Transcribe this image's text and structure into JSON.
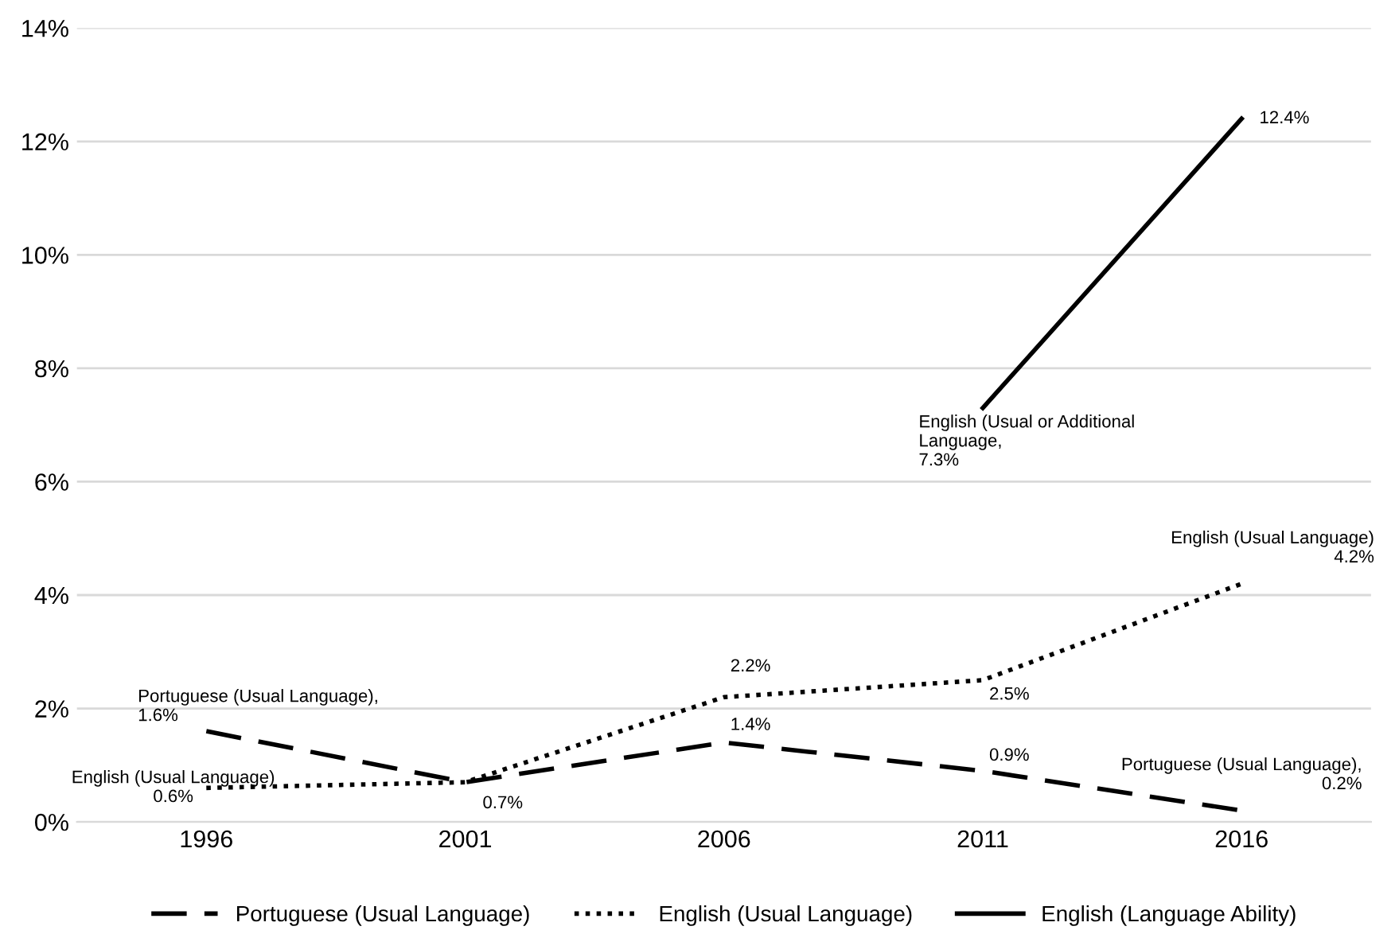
{
  "chart_data": {
    "type": "line",
    "categories": [
      "1996",
      "2001",
      "2006",
      "2011",
      "2016"
    ],
    "ylim": [
      0,
      14
    ],
    "yticks": [
      {
        "value": 0,
        "label": "0%"
      },
      {
        "value": 2,
        "label": "2%"
      },
      {
        "value": 4,
        "label": "4%"
      },
      {
        "value": 6,
        "label": "6%"
      },
      {
        "value": 8,
        "label": "8%"
      },
      {
        "value": 10,
        "label": "10%"
      },
      {
        "value": 12,
        "label": "12%"
      },
      {
        "value": 14,
        "label": "14%"
      }
    ],
    "grid": "y",
    "legend": "bottom",
    "marker": "none",
    "series": [
      {
        "name": "Portuguese (Usual Language)",
        "color": "#000000",
        "line_style": "dashed",
        "values": [
          1.6,
          0.7,
          1.4,
          0.9,
          0.2
        ],
        "value_labels": [
          "Portuguese (Usual Language),\n1.6%",
          null,
          "1.4%",
          "0.9%",
          "Portuguese (Usual Language),\n0.2%"
        ]
      },
      {
        "name": "English (Usual Language)",
        "color": "#000000",
        "line_style": "dotted",
        "values": [
          0.6,
          0.7,
          2.2,
          2.5,
          4.2
        ],
        "value_labels": [
          "English (Usual Language)\n0.6%",
          "0.7%",
          "2.2%",
          "2.5%",
          "English (Usual Language)\n4.2%"
        ]
      },
      {
        "name": "English (Language Ability)",
        "color": "#000000",
        "line_style": "solid",
        "values": [
          null,
          null,
          null,
          7.3,
          12.4
        ],
        "value_labels": [
          null,
          null,
          null,
          "English (Usual or Additional\nLanguage,\n7.3%",
          "12.4%"
        ]
      }
    ]
  }
}
